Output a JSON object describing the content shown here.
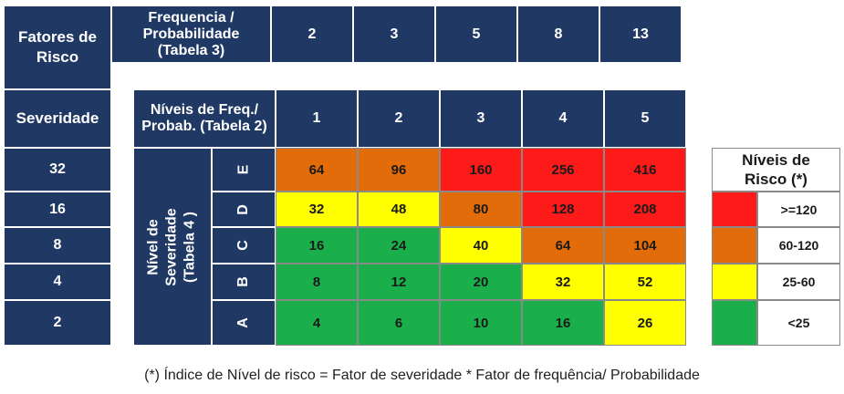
{
  "colors": {
    "navy": "#1f3864",
    "green": "#1aaf4b",
    "yellow": "#ffff00",
    "orange": "#e36c0a",
    "red": "#ff1a1a"
  },
  "top_block": {
    "fatores_label": "Fatores de Risco",
    "freq_header": "Frequencia / Probabilidade (Tabela 3)",
    "freq_values": [
      "2",
      "3",
      "5",
      "8",
      "13"
    ],
    "severidade_label": "Severidade",
    "sev_values": [
      "32",
      "16",
      "8",
      "4",
      "2"
    ]
  },
  "matrix": {
    "header": "Níveis de Freq./ Probab. (Tabela 2)",
    "freq_levels": [
      "1",
      "2",
      "3",
      "4",
      "5"
    ],
    "vertical_label": "Nível de Severidade (Tabela 4 )",
    "sev_letters": [
      "E",
      "D",
      "C",
      "B",
      "A"
    ],
    "rows": [
      {
        "values": [
          "64",
          "96",
          "160",
          "256",
          "416"
        ],
        "colors": [
          "orange",
          "orange",
          "red",
          "red",
          "red"
        ]
      },
      {
        "values": [
          "32",
          "48",
          "80",
          "128",
          "208"
        ],
        "colors": [
          "yellow",
          "yellow",
          "orange",
          "red",
          "red"
        ]
      },
      {
        "values": [
          "16",
          "24",
          "40",
          "64",
          "104"
        ],
        "colors": [
          "green",
          "green",
          "yellow",
          "orange",
          "orange"
        ]
      },
      {
        "values": [
          "8",
          "12",
          "20",
          "32",
          "52"
        ],
        "colors": [
          "green",
          "green",
          "green",
          "yellow",
          "yellow"
        ]
      },
      {
        "values": [
          "4",
          "6",
          "10",
          "16",
          "26"
        ],
        "colors": [
          "green",
          "green",
          "green",
          "green",
          "yellow"
        ]
      }
    ]
  },
  "legend": {
    "title": "Níveis de Risco (*)",
    "items": [
      {
        "label": ">=120",
        "color": "red"
      },
      {
        "label": "60-120",
        "color": "orange"
      },
      {
        "label": "25-60",
        "color": "yellow"
      },
      {
        "label": "<25",
        "color": "green"
      }
    ]
  },
  "footnote": "(*) Índice de Nível de risco = Fator de severidade * Fator de frequência/ Probabilidade"
}
